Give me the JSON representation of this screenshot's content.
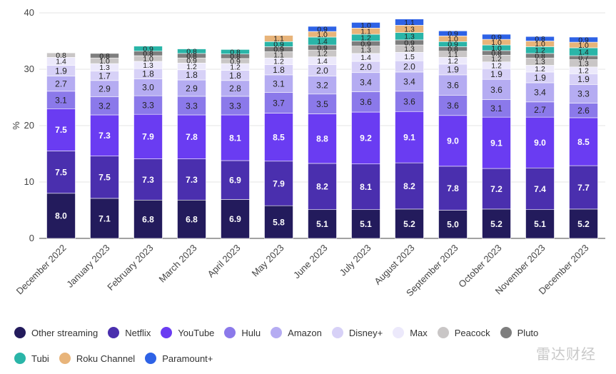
{
  "chart_data": {
    "type": "bar",
    "stacked": true,
    "ylabel": "%",
    "ylim": [
      0,
      40
    ],
    "yticks": [
      0,
      10,
      20,
      30,
      40
    ],
    "grid": true,
    "legend_position": "bottom",
    "categories": [
      "December 2022",
      "January 2023",
      "February 2023",
      "March 2023",
      "April 2023",
      "May 2023",
      "June 2023",
      "July 2023",
      "August 2023",
      "September 2023",
      "October 2023",
      "November 2023",
      "December 2023"
    ],
    "series": [
      {
        "name": "Other streaming",
        "color": "#231b5c",
        "values": [
          8.0,
          7.1,
          6.8,
          6.8,
          6.9,
          5.8,
          5.1,
          5.1,
          5.2,
          5.0,
          5.2,
          5.1,
          5.2
        ]
      },
      {
        "name": "Netflix",
        "color": "#4a2fae",
        "values": [
          7.5,
          7.5,
          7.3,
          7.3,
          6.9,
          7.9,
          8.2,
          8.1,
          8.2,
          7.8,
          7.2,
          7.4,
          7.7
        ]
      },
      {
        "name": "YouTube",
        "color": "#6a3cf2",
        "values": [
          7.5,
          7.3,
          7.9,
          7.8,
          8.1,
          8.5,
          8.8,
          9.2,
          9.1,
          9.0,
          9.1,
          9.0,
          8.5
        ]
      },
      {
        "name": "Hulu",
        "color": "#8b79ea",
        "values": [
          3.1,
          3.2,
          3.3,
          3.3,
          3.3,
          3.7,
          3.5,
          3.6,
          3.6,
          3.6,
          3.1,
          2.7,
          2.6
        ]
      },
      {
        "name": "Amazon",
        "color": "#b5acf2",
        "values": [
          2.7,
          2.9,
          3.0,
          2.9,
          2.8,
          3.1,
          3.2,
          3.4,
          3.4,
          3.6,
          3.6,
          3.4,
          3.3
        ]
      },
      {
        "name": "Disney+",
        "color": "#d7d1f7",
        "values": [
          1.9,
          1.7,
          1.8,
          1.8,
          1.8,
          1.8,
          2.0,
          2.0,
          2.0,
          1.9,
          1.9,
          1.9,
          1.9
        ]
      },
      {
        "name": "Max",
        "color": "#ece9fb",
        "values": [
          1.4,
          1.3,
          1.3,
          1.2,
          1.2,
          1.2,
          1.4,
          1.4,
          1.5,
          1.2,
          1.2,
          1.2,
          1.2
        ]
      },
      {
        "name": "Peacock",
        "color": "#c9c6c6",
        "values": [
          0.8,
          1.0,
          1.0,
          0.9,
          0.9,
          1.1,
          1.2,
          1.3,
          1.3,
          1.1,
          1.2,
          1.3,
          1.3
        ]
      },
      {
        "name": "Pluto",
        "color": "#7e7e7e",
        "values": [
          0.0,
          0.8,
          0.8,
          0.8,
          0.8,
          0.9,
          0.9,
          0.9,
          0.9,
          0.8,
          0.8,
          0.8,
          0.7
        ]
      },
      {
        "name": "Tubi",
        "color": "#2ab5a8",
        "values": [
          0.0,
          0.0,
          0.9,
          0.8,
          0.8,
          0.9,
          1.4,
          1.2,
          1.3,
          0.9,
          1.0,
          1.2,
          1.4
        ]
      },
      {
        "name": "Roku Channel",
        "color": "#e8b47a",
        "values": [
          0.0,
          0.0,
          0.0,
          0.0,
          0.0,
          1.1,
          1.0,
          1.1,
          1.3,
          1.0,
          1.0,
          1.0,
          1.0
        ]
      },
      {
        "name": "Paramount+",
        "color": "#2e62e6",
        "values": [
          0.0,
          0.0,
          0.0,
          0.0,
          0.0,
          0.0,
          0.9,
          1.0,
          1.1,
          0.9,
          0.9,
          0.8,
          0.9
        ]
      }
    ],
    "legend_rows": [
      [
        "Other streaming",
        "Netflix",
        "YouTube",
        "Hulu",
        "Amazon",
        "Disney+",
        "Max",
        "Peacock",
        "Pluto"
      ],
      [
        "Tubi",
        "Roku Channel",
        "Paramount+"
      ]
    ]
  },
  "watermark": "雷达财经"
}
